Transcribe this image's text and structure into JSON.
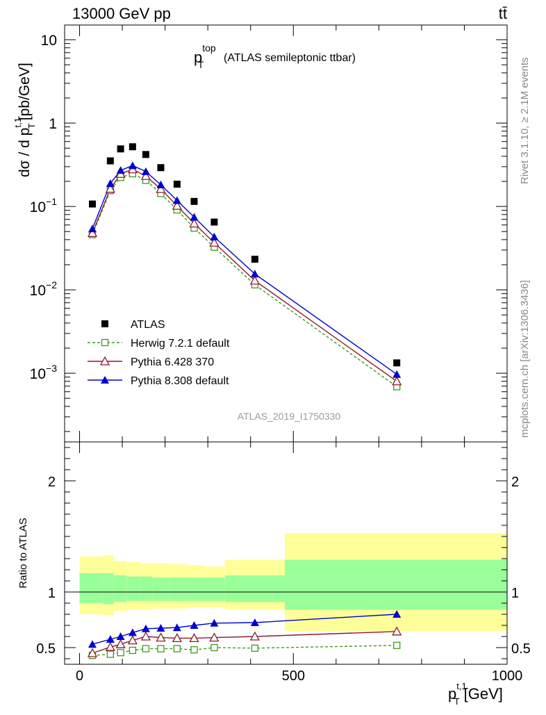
{
  "header": {
    "energy_label": "13000 GeV pp",
    "process_label": "tt̄"
  },
  "side": {
    "rivet_label": "Rivet 3.1.10, ≥ 2.1M events",
    "mcplots_label": "mcplots.cern.ch [arXiv:1306.3436]"
  },
  "chart_data": [
    {
      "type": "scatter",
      "panel": "main",
      "title_main": "p",
      "title_sup": "top",
      "title_sub": "T",
      "title_suffix": "(ATLAS semileptonic ttbar)",
      "ylabel_prefix": "dσ / d p",
      "ylabel_sup": "t,1",
      "ylabel_sub": "T",
      "ylabel_suffix": "[pb/GeV]",
      "yscale": "log",
      "ylim": [
        0.00015,
        15
      ],
      "xlim": [
        -35,
        1000
      ],
      "ytick_labels": [
        {
          "base": "10",
          "exp": ""
        },
        {
          "base": "1",
          "exp": ""
        },
        {
          "base": "10",
          "exp": "−1"
        },
        {
          "base": "10",
          "exp": "−2"
        },
        {
          "base": "10",
          "exp": "−3"
        }
      ],
      "analysis_label": "ATLAS_2019_I1750330",
      "legend_position": "bottom-left",
      "series": [
        {
          "name": "ATLAS",
          "color": "#000000",
          "marker": "filled-square",
          "line": "none",
          "x": [
            30,
            72,
            96,
            124,
            155,
            190,
            228,
            268,
            315,
            410,
            742
          ],
          "y": [
            0.107,
            0.352,
            0.49,
            0.52,
            0.42,
            0.292,
            0.185,
            0.115,
            0.065,
            0.0233,
            0.00133
          ]
        },
        {
          "name": "Herwig 7.2.1 default",
          "color": "#3d9a1a",
          "marker": "open-square",
          "line": "dashed",
          "x": [
            30,
            72,
            96,
            124,
            155,
            190,
            228,
            268,
            315,
            410,
            742
          ],
          "y": [
            0.046,
            0.155,
            0.223,
            0.247,
            0.206,
            0.143,
            0.091,
            0.055,
            0.0325,
            0.0115,
            0.00069
          ]
        },
        {
          "name": "Pythia 6.428 370",
          "color": "#8b1a2b",
          "marker": "open-triangle",
          "line": "solid",
          "x": [
            30,
            72,
            96,
            124,
            155,
            190,
            228,
            268,
            315,
            410,
            742
          ],
          "y": [
            0.048,
            0.163,
            0.246,
            0.279,
            0.232,
            0.162,
            0.102,
            0.0625,
            0.0368,
            0.0129,
            0.0008
          ]
        },
        {
          "name": "Pythia 8.308 default",
          "color": "#0000d0",
          "marker": "filled-triangle",
          "line": "solid",
          "x": [
            30,
            72,
            96,
            124,
            155,
            190,
            228,
            268,
            315,
            410,
            742
          ],
          "y": [
            0.054,
            0.189,
            0.271,
            0.309,
            0.262,
            0.182,
            0.118,
            0.0745,
            0.0432,
            0.0155,
            0.00097
          ]
        }
      ]
    },
    {
      "type": "scatter",
      "panel": "ratio",
      "ylabel": "Ratio to ATLAS",
      "xlabel_main": "p",
      "xlabel_sup": "t,1",
      "xlabel_sub": "T",
      "xlabel_suffix": "[GeV]",
      "xlim": [
        -35,
        1000
      ],
      "ylim": [
        0.35,
        2.35
      ],
      "yticks": [
        0.5,
        1,
        2
      ],
      "ytick_labels": [
        "0.5",
        "1",
        "2"
      ],
      "xticks": [
        0,
        500,
        1000
      ],
      "xtick_labels": [
        "0",
        "500",
        "1000"
      ],
      "reference_line": 1,
      "band_colors": {
        "outer": "#ffff99",
        "inner": "#99ff99"
      },
      "bands": [
        {
          "x0": 0,
          "x1": 55,
          "lo_outer": 0.8,
          "hi_outer": 1.32,
          "lo_inner": 0.9,
          "hi_inner": 1.17
        },
        {
          "x0": 55,
          "x1": 80,
          "lo_outer": 0.79,
          "hi_outer": 1.33,
          "lo_inner": 0.89,
          "hi_inner": 1.17
        },
        {
          "x0": 80,
          "x1": 110,
          "lo_outer": 0.83,
          "hi_outer": 1.28,
          "lo_inner": 0.91,
          "hi_inner": 1.15
        },
        {
          "x0": 110,
          "x1": 140,
          "lo_outer": 0.84,
          "hi_outer": 1.27,
          "lo_inner": 0.92,
          "hi_inner": 1.14
        },
        {
          "x0": 140,
          "x1": 170,
          "lo_outer": 0.84,
          "hi_outer": 1.26,
          "lo_inner": 0.92,
          "hi_inner": 1.14
        },
        {
          "x0": 170,
          "x1": 210,
          "lo_outer": 0.85,
          "hi_outer": 1.26,
          "lo_inner": 0.92,
          "hi_inner": 1.13
        },
        {
          "x0": 210,
          "x1": 250,
          "lo_outer": 0.85,
          "hi_outer": 1.25,
          "lo_inner": 0.92,
          "hi_inner": 1.13
        },
        {
          "x0": 250,
          "x1": 290,
          "lo_outer": 0.86,
          "hi_outer": 1.24,
          "lo_inner": 0.92,
          "hi_inner": 1.13
        },
        {
          "x0": 290,
          "x1": 340,
          "lo_outer": 0.86,
          "hi_outer": 1.23,
          "lo_inner": 0.92,
          "hi_inner": 1.13
        },
        {
          "x0": 340,
          "x1": 480,
          "lo_outer": 0.84,
          "hi_outer": 1.29,
          "lo_inner": 0.91,
          "hi_inner": 1.15
        },
        {
          "x0": 480,
          "x1": 1000,
          "lo_outer": 0.65,
          "hi_outer": 1.53,
          "lo_inner": 0.84,
          "hi_inner": 1.29
        }
      ],
      "series": [
        {
          "name": "Herwig 7.2.1 default",
          "color": "#3d9a1a",
          "marker": "open-square",
          "line": "dashed",
          "x": [
            30,
            72,
            96,
            124,
            155,
            190,
            228,
            268,
            315,
            410,
            742
          ],
          "y": [
            0.43,
            0.44,
            0.455,
            0.475,
            0.49,
            0.49,
            0.49,
            0.48,
            0.5,
            0.495,
            0.52
          ]
        },
        {
          "name": "Pythia 6.428 370",
          "color": "#8b1a2b",
          "marker": "open-triangle",
          "line": "solid",
          "x": [
            30,
            72,
            96,
            124,
            155,
            190,
            228,
            268,
            315,
            410,
            742
          ],
          "y": [
            0.45,
            0.505,
            0.53,
            0.565,
            0.6,
            0.59,
            0.585,
            0.585,
            0.59,
            0.6,
            0.645
          ]
        },
        {
          "name": "Pythia 8.308 default",
          "color": "#0000d0",
          "marker": "filled-triangle",
          "line": "solid",
          "x": [
            30,
            72,
            96,
            124,
            155,
            190,
            228,
            268,
            315,
            410,
            742
          ],
          "y": [
            0.53,
            0.575,
            0.6,
            0.635,
            0.67,
            0.675,
            0.68,
            0.7,
            0.72,
            0.725,
            0.8
          ]
        }
      ]
    }
  ]
}
